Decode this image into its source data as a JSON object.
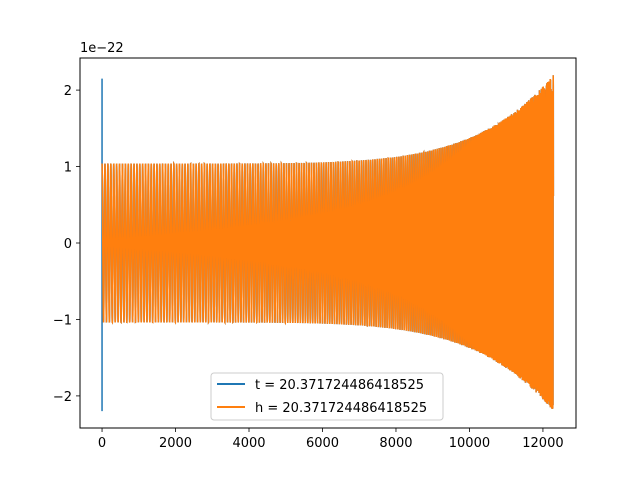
{
  "chart_data": {
    "type": "line",
    "title": "",
    "xlabel": "",
    "ylabel": "",
    "y_scale_note": "1e−22",
    "xlim": [
      -600,
      12900
    ],
    "ylim": [
      -2.42,
      2.42
    ],
    "x_ticks": [
      0,
      2000,
      4000,
      6000,
      8000,
      10000,
      12000
    ],
    "x_tick_labels": [
      "0",
      "2000",
      "4000",
      "6000",
      "8000",
      "10000",
      "12000"
    ],
    "y_ticks": [
      -2,
      -1,
      0,
      1,
      2
    ],
    "y_tick_labels": [
      "−2",
      "−1",
      "0",
      "1",
      "2"
    ],
    "grid": false,
    "legend_position": "bottom-center",
    "x_max_sample": 12290,
    "series": [
      {
        "name": "t = 20.371724486418525",
        "color": "#1f77b4",
        "description_values": {
          "spike_at_x": 0,
          "spike_min": -2.2,
          "spike_max": 2.15,
          "amplitude_start": 1.04,
          "amplitude_end": 2.2
        }
      },
      {
        "name": "h = 20.371724486418525",
        "color": "#ff7f0e",
        "description_values": {
          "amplitude_start": 1.04,
          "amplitude_end": 2.2,
          "chirp": true
        }
      }
    ]
  }
}
